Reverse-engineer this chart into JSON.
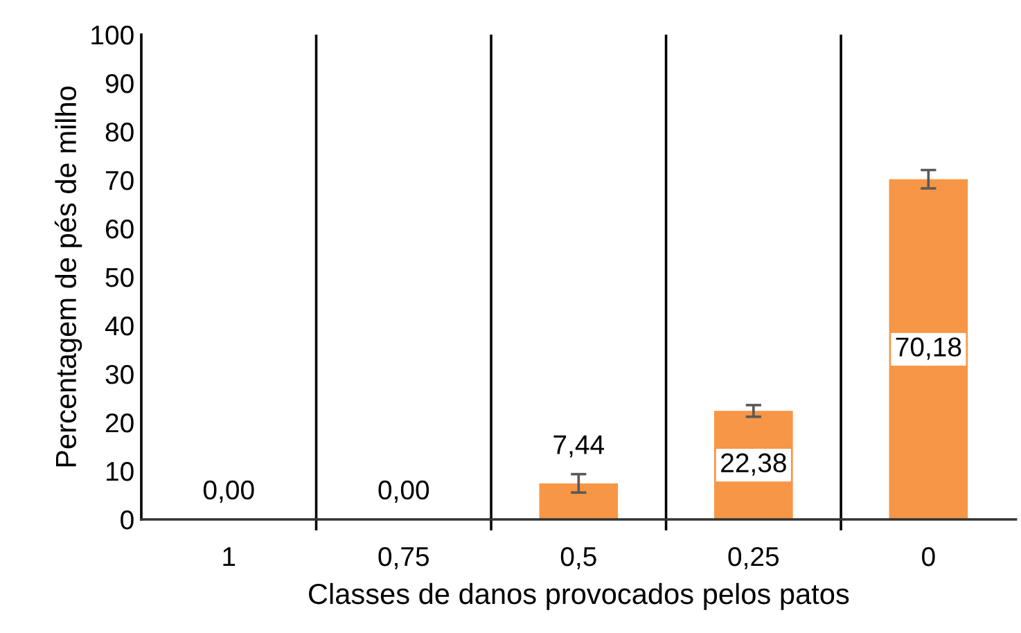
{
  "chart_data": {
    "type": "bar",
    "xlabel": "Classes de danos provocados pelos patos",
    "ylabel": "Percentagem de pés de milho",
    "categories": [
      "1",
      "0,75",
      "0,5",
      "0,25",
      "0"
    ],
    "values": [
      0,
      0,
      7.44,
      22.38,
      70.18
    ],
    "errors": [
      null,
      null,
      1.9,
      1.2,
      1.9
    ],
    "value_labels": [
      "0,00",
      "0,00",
      "7,44",
      "22,38",
      "70,18"
    ],
    "color": "#f79646",
    "ylim": [
      0,
      100
    ],
    "yticks": [
      0,
      10,
      20,
      30,
      40,
      50,
      60,
      70,
      80,
      90,
      100
    ],
    "grid": "x"
  }
}
